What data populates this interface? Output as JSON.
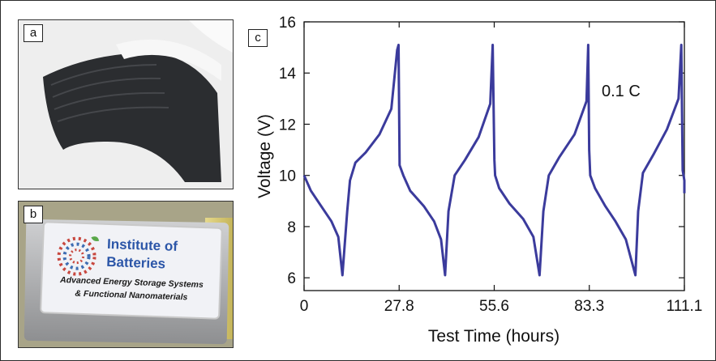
{
  "panels": {
    "a": {
      "label": "a"
    },
    "b": {
      "label": "b",
      "card_title_line1": "Institute of",
      "card_title_line2": "Batteries",
      "card_subtitle_line1": "Advanced Energy Storage Systems",
      "card_subtitle_line2": "& Functional Nanomaterials"
    },
    "c": {
      "label": "c"
    }
  },
  "chart_data": {
    "type": "line",
    "title": "",
    "xlabel": "Test Time (hours)",
    "ylabel": "Voltage (V)",
    "annotation": "0.1 C",
    "xlim": [
      0,
      111.1
    ],
    "ylim": [
      5.5,
      16
    ],
    "x_tick_labels": [
      "0",
      "27.8",
      "55.6",
      "83.3",
      "111.1"
    ],
    "y_tick_labels": [
      "6",
      "8",
      "10",
      "12",
      "14",
      "16"
    ],
    "y_ticks": [
      6,
      8,
      10,
      12,
      14,
      16
    ],
    "grid": false,
    "line_color": "#3b3b9c",
    "series": [
      {
        "x": [
          0,
          2,
          5,
          8,
          10,
          11.2,
          12.6,
          13.4,
          15,
          18,
          22,
          25.5,
          27.2,
          27.6,
          27.9,
          29,
          31,
          35,
          38,
          40,
          41.2,
          42.2,
          44,
          47,
          51,
          54.4,
          55.1,
          55.6,
          55.8,
          57,
          60,
          64,
          67,
          68.8,
          69.9,
          71.5,
          74.5,
          79,
          82.5,
          83,
          83.3,
          83.6,
          85,
          88,
          91,
          94,
          96.8,
          97.6,
          99,
          102,
          106,
          109.4,
          110.2,
          110.6,
          112,
          114
        ],
        "y": [
          10.0,
          9.4,
          8.8,
          8.2,
          7.6,
          6.1,
          8.6,
          9.8,
          10.5,
          10.9,
          11.6,
          12.6,
          14.9,
          15.1,
          10.4,
          10.0,
          9.4,
          8.8,
          8.2,
          7.5,
          6.1,
          8.6,
          10.0,
          10.6,
          11.5,
          12.8,
          15.1,
          10.6,
          10.0,
          9.5,
          8.9,
          8.3,
          7.6,
          6.1,
          8.6,
          10.0,
          10.7,
          11.6,
          12.9,
          15.1,
          11.0,
          10.0,
          9.5,
          8.8,
          8.2,
          7.5,
          6.1,
          8.6,
          10.1,
          10.8,
          11.8,
          13.0,
          15.1,
          10.2,
          9.8,
          9.3
        ]
      }
    ]
  }
}
